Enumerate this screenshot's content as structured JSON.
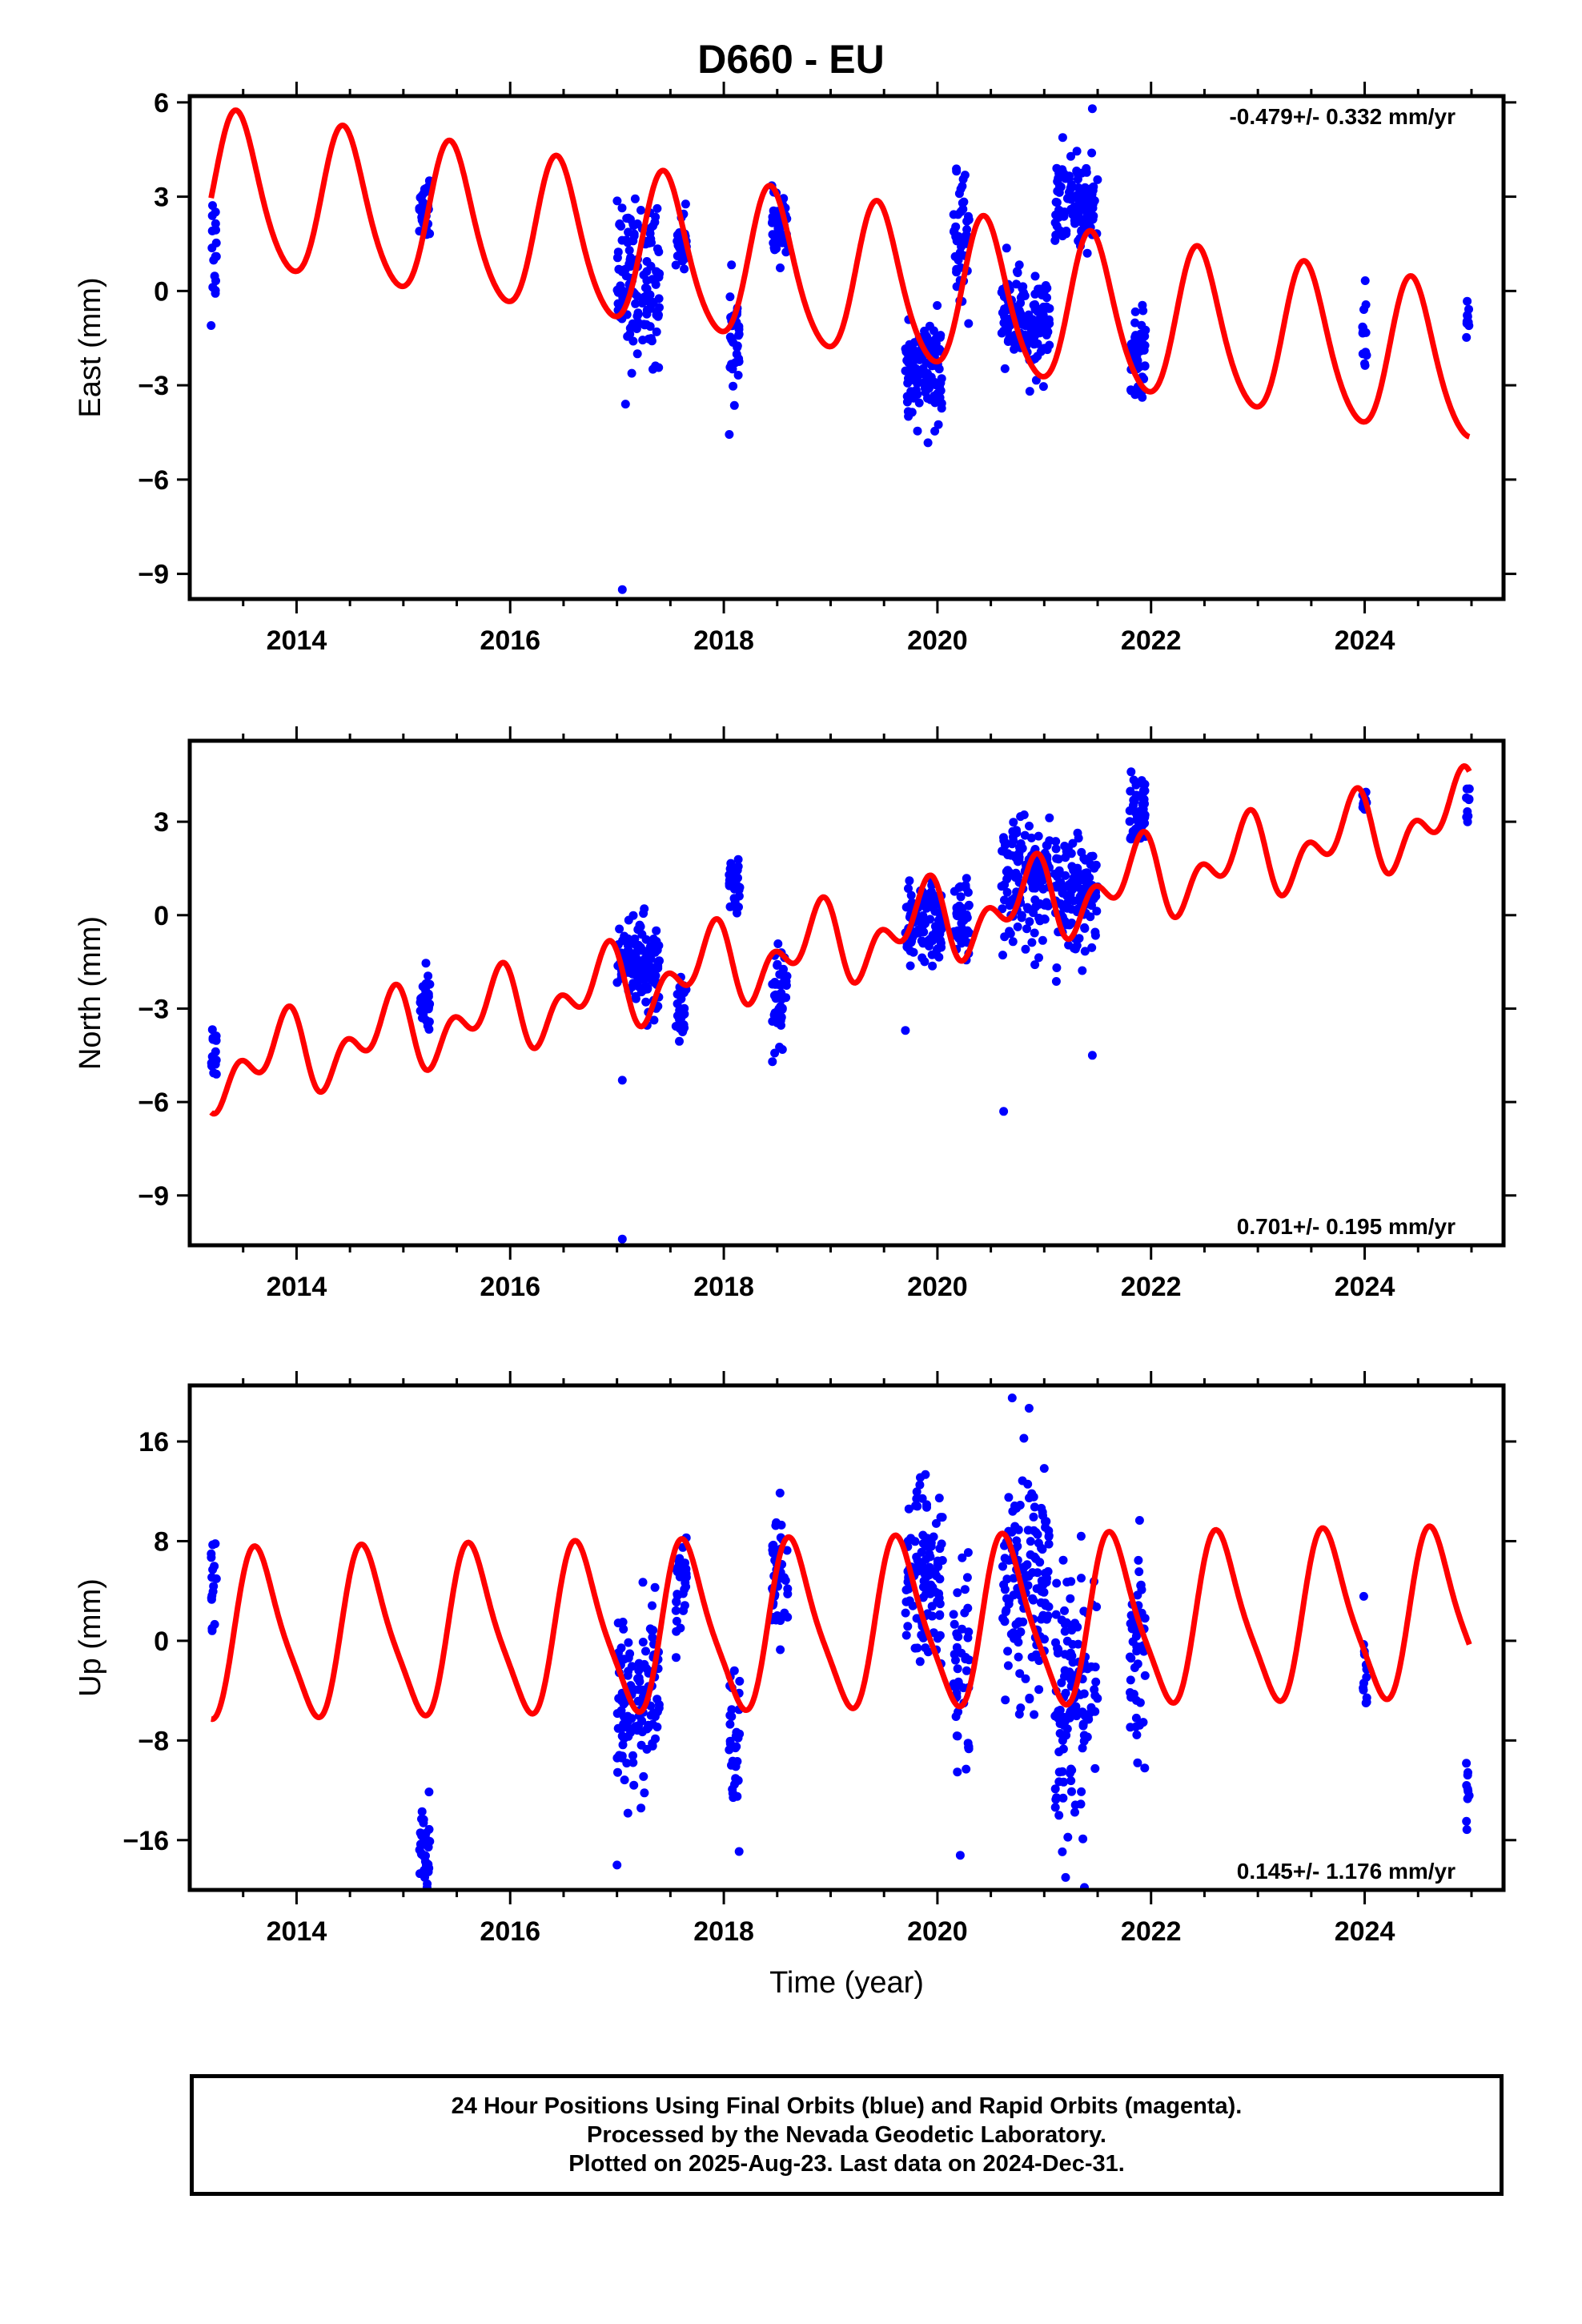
{
  "title": "D660 - EU",
  "colors": {
    "data": "#0000ff",
    "model": "#ff0000",
    "frame": "#000000"
  },
  "footer": {
    "lines": [
      "24 Hour Positions Using Final Orbits (blue) and Rapid Orbits (magenta).",
      "Processed by the Nevada Geodetic Laboratory.",
      "Plotted on 2025-Aug-23. Last data on 2024-Dec-31."
    ]
  },
  "chart_data": [
    {
      "type": "scatter",
      "ylabel": "East (mm)",
      "xlabel": "",
      "rate_text": "-0.479+/- 0.332 mm/yr",
      "xlim": [
        2013.0,
        2025.3
      ],
      "ylim": [
        -9.8,
        6.2
      ],
      "xticks": [
        2014,
        2016,
        2018,
        2020,
        2022,
        2024
      ],
      "yticks": [
        -9,
        -6,
        -3,
        0,
        3,
        6
      ],
      "ytick_labels": [
        "−9",
        "−6",
        "−3",
        "0",
        "3",
        "6"
      ],
      "model": {
        "offset": 3.2,
        "trend": -0.479,
        "t0": 2013.2,
        "annual_amp": 2.4,
        "annual_phase": 2013.45,
        "semi_amp": 0.3,
        "semi_phase": 2013.4
      },
      "clusters": [
        {
          "t0": 2013.2,
          "t1": 2013.25,
          "center": 1.5,
          "spread": 1.8
        },
        {
          "t0": 2015.15,
          "t1": 2015.25,
          "center": 2.8,
          "spread": 1.0
        },
        {
          "t0": 2017.0,
          "t1": 2017.4,
          "center": 0.3,
          "spread": 2.2
        },
        {
          "t0": 2017.55,
          "t1": 2017.65,
          "center": 1.5,
          "spread": 0.8
        },
        {
          "t0": 2018.05,
          "t1": 2018.15,
          "center": -1.5,
          "spread": 1.6
        },
        {
          "t0": 2018.45,
          "t1": 2018.6,
          "center": 2.0,
          "spread": 0.9
        },
        {
          "t0": 2019.7,
          "t1": 2020.05,
          "center": -2.6,
          "spread": 1.4
        },
        {
          "t0": 2020.15,
          "t1": 2020.3,
          "center": 1.5,
          "spread": 1.8
        },
        {
          "t0": 2020.6,
          "t1": 2021.05,
          "center": -1.0,
          "spread": 1.4
        },
        {
          "t0": 2021.1,
          "t1": 2021.5,
          "center": 2.8,
          "spread": 1.2
        },
        {
          "t0": 2021.8,
          "t1": 2021.95,
          "center": -2.0,
          "spread": 1.2
        },
        {
          "t0": 2023.98,
          "t1": 2024.02,
          "center": -1.5,
          "spread": 1.5
        },
        {
          "t0": 2024.95,
          "t1": 2024.98,
          "center": -1.0,
          "spread": 0.8
        }
      ],
      "points": [
        [
          2017.05,
          -9.5
        ],
        [
          2013.2,
          -1.1
        ],
        [
          2021.45,
          5.8
        ],
        [
          2017.08,
          -3.6
        ]
      ]
    },
    {
      "type": "scatter",
      "ylabel": "North (mm)",
      "xlabel": "",
      "rate_text": "0.701+/- 0.195 mm/yr",
      "xlim": [
        2013.0,
        2025.3
      ],
      "ylim": [
        -10.6,
        5.6
      ],
      "xticks": [
        2014,
        2016,
        2018,
        2020,
        2022,
        2024
      ],
      "yticks": [
        -9,
        -6,
        -3,
        0,
        3
      ],
      "ytick_labels": [
        "−9",
        "−6",
        "−3",
        "0",
        "3"
      ],
      "model": {
        "offset": -5.0,
        "trend": 0.701,
        "t0": 2013.2,
        "annual_amp": 0.9,
        "annual_phase": 2013.85,
        "semi_amp": 0.8,
        "semi_phase": 2013.95
      },
      "clusters": [
        {
          "t0": 2013.2,
          "t1": 2013.25,
          "center": -4.3,
          "spread": 0.7
        },
        {
          "t0": 2015.15,
          "t1": 2015.25,
          "center": -2.8,
          "spread": 0.9
        },
        {
          "t0": 2017.0,
          "t1": 2017.4,
          "center": -1.5,
          "spread": 1.3
        },
        {
          "t0": 2017.55,
          "t1": 2017.65,
          "center": -3.0,
          "spread": 1.0
        },
        {
          "t0": 2018.05,
          "t1": 2018.15,
          "center": 0.8,
          "spread": 1.0
        },
        {
          "t0": 2018.45,
          "t1": 2018.6,
          "center": -3.0,
          "spread": 1.7
        },
        {
          "t0": 2019.7,
          "t1": 2020.05,
          "center": -0.3,
          "spread": 1.2
        },
        {
          "t0": 2020.15,
          "t1": 2020.3,
          "center": 0.0,
          "spread": 1.0
        },
        {
          "t0": 2020.6,
          "t1": 2021.05,
          "center": 1.0,
          "spread": 1.8
        },
        {
          "t0": 2021.1,
          "t1": 2021.5,
          "center": 0.8,
          "spread": 1.6
        },
        {
          "t0": 2021.8,
          "t1": 2021.95,
          "center": 3.2,
          "spread": 1.1
        },
        {
          "t0": 2023.98,
          "t1": 2024.02,
          "center": 3.6,
          "spread": 0.4
        },
        {
          "t0": 2024.95,
          "t1": 2024.98,
          "center": 3.4,
          "spread": 0.6
        }
      ],
      "points": [
        [
          2017.05,
          -10.4
        ],
        [
          2020.62,
          -6.3
        ],
        [
          2021.45,
          -4.5
        ],
        [
          2019.7,
          -3.7
        ],
        [
          2017.05,
          -5.3
        ]
      ]
    },
    {
      "type": "scatter",
      "ylabel": "Up (mm)",
      "xlabel": "Time (year)",
      "rate_text": "0.145+/- 1.176 mm/yr",
      "xlim": [
        2013.0,
        2025.3
      ],
      "ylim": [
        -20.0,
        20.5
      ],
      "xticks": [
        2014,
        2016,
        2018,
        2020,
        2022,
        2024
      ],
      "yticks": [
        -16,
        -8,
        0,
        8,
        16
      ],
      "ytick_labels": [
        "−16",
        "−8",
        "0",
        "8",
        "16"
      ],
      "model": {
        "offset": 0.3,
        "trend": 0.145,
        "t0": 2013.2,
        "annual_amp": 6.5,
        "annual_phase": 2013.65,
        "semi_amp": 1.3,
        "semi_phase": 2013.55
      },
      "clusters": [
        {
          "t0": 2013.2,
          "t1": 2013.25,
          "center": 4.0,
          "spread": 5.0
        },
        {
          "t0": 2015.15,
          "t1": 2015.25,
          "center": -16.0,
          "spread": 3.0
        },
        {
          "t0": 2017.0,
          "t1": 2017.4,
          "center": -5.0,
          "spread": 6.5
        },
        {
          "t0": 2017.55,
          "t1": 2017.65,
          "center": 4.0,
          "spread": 4.0
        },
        {
          "t0": 2018.05,
          "t1": 2018.15,
          "center": -8.0,
          "spread": 7.0
        },
        {
          "t0": 2018.45,
          "t1": 2018.6,
          "center": 5.0,
          "spread": 5.0
        },
        {
          "t0": 2019.7,
          "t1": 2020.05,
          "center": 5.0,
          "spread": 7.0
        },
        {
          "t0": 2020.15,
          "t1": 2020.3,
          "center": -4.0,
          "spread": 8.0
        },
        {
          "t0": 2020.6,
          "t1": 2021.05,
          "center": 4.0,
          "spread": 8.5
        },
        {
          "t0": 2021.1,
          "t1": 2021.5,
          "center": -4.0,
          "spread": 9.0
        },
        {
          "t0": 2021.8,
          "t1": 2021.95,
          "center": 0.0,
          "spread": 7.0
        },
        {
          "t0": 2023.98,
          "t1": 2024.02,
          "center": -3.0,
          "spread": 5.0
        },
        {
          "t0": 2024.95,
          "t1": 2024.98,
          "center": -12.0,
          "spread": 3.5
        }
      ],
      "points": [
        [
          2020.7,
          19.5
        ],
        [
          2015.2,
          -19.0
        ],
        [
          2021.2,
          -19.0
        ],
        [
          2017.0,
          -18.0
        ]
      ]
    }
  ]
}
